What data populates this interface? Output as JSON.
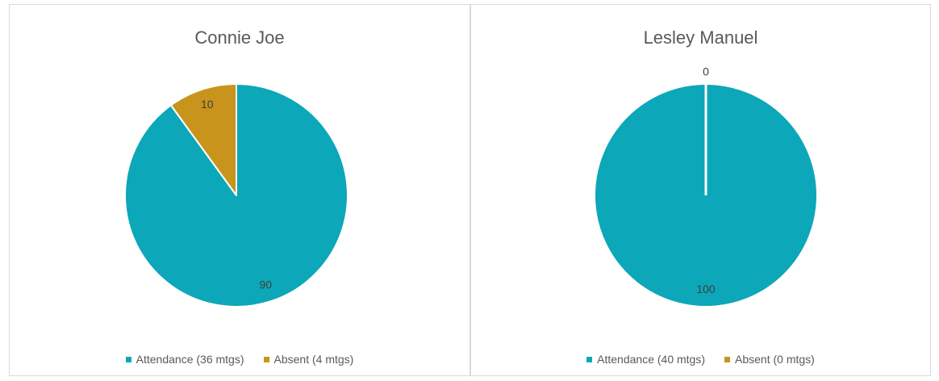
{
  "colors": {
    "attendance": "#0ca7b8",
    "absent": "#c8941c"
  },
  "chart_data": [
    {
      "type": "pie",
      "title": "Connie Joe",
      "categories": [
        "Attendance (36 mtgs)",
        "Absent (4 mtgs)"
      ],
      "values": [
        90,
        10
      ],
      "data_labels": [
        "90",
        "10"
      ],
      "legend": "bottom"
    },
    {
      "type": "pie",
      "title": "Lesley Manuel",
      "categories": [
        "Attendance (40 mtgs)",
        "Absent (0 mtgs)"
      ],
      "values": [
        100,
        0
      ],
      "data_labels": [
        "100",
        "0"
      ],
      "legend": "bottom"
    }
  ]
}
